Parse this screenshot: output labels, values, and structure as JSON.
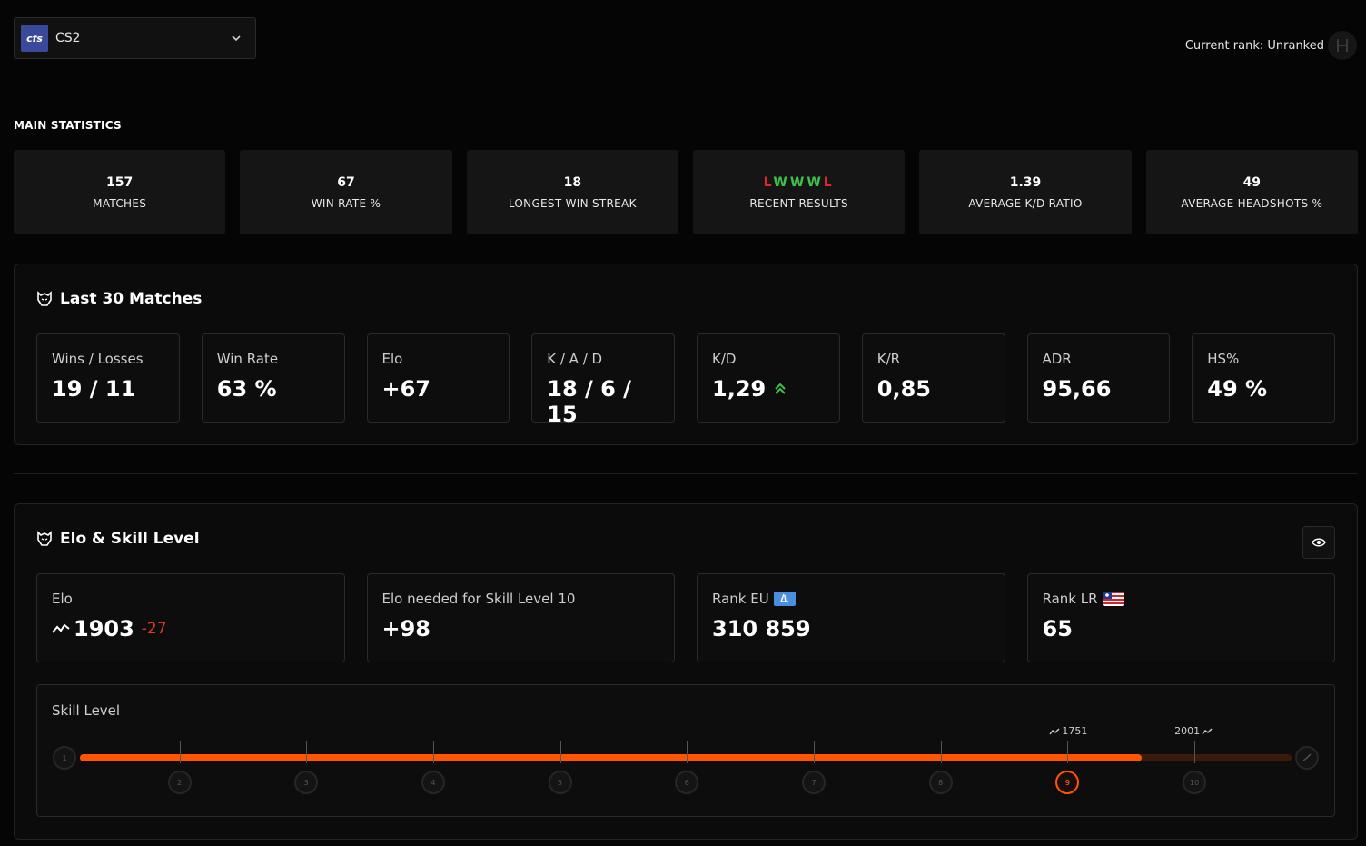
{
  "game_selector": {
    "logo_text": "cfs",
    "value": "CS2"
  },
  "current_rank": {
    "label": "Current rank: Unranked"
  },
  "main_statistics": {
    "title": "MAIN STATISTICS",
    "cards": [
      {
        "value": "157",
        "label": "MATCHES"
      },
      {
        "value": "67",
        "label": "WIN RATE %"
      },
      {
        "value": "18",
        "label": "LONGEST WIN STREAK"
      },
      {
        "value": "LWWWL",
        "label": "RECENT RESULTS"
      },
      {
        "value": "1.39",
        "label": "AVERAGE K/D RATIO"
      },
      {
        "value": "49",
        "label": "AVERAGE HEADSHOTS %"
      }
    ],
    "recent_results": [
      "L",
      "W",
      "W",
      "W",
      "L"
    ]
  },
  "last30": {
    "title": "Last 30 Matches",
    "cards": [
      {
        "label": "Wins / Losses",
        "value": "19 / 11"
      },
      {
        "label": "Win Rate",
        "value": "63 %"
      },
      {
        "label": "Elo",
        "value": "+67"
      },
      {
        "label": "K / A / D",
        "value": "18 / 6 / 15"
      },
      {
        "label": "K/D",
        "value": "1,29"
      },
      {
        "label": "K/R",
        "value": "0,85"
      },
      {
        "label": "ADR",
        "value": "95,66"
      },
      {
        "label": "HS%",
        "value": "49 %"
      }
    ]
  },
  "elo_section": {
    "title": "Elo & Skill Level",
    "cards": [
      {
        "label": "Elo",
        "value": "1903",
        "delta": "-27"
      },
      {
        "label": "Elo needed for Skill Level 10",
        "value": "+98"
      },
      {
        "label": "Rank EU",
        "value": "310 859"
      },
      {
        "label": "Rank LR",
        "value": "65"
      }
    ],
    "skill_level": {
      "label": "Skill Level",
      "levels": [
        "1",
        "2",
        "3",
        "4",
        "5",
        "6",
        "7",
        "8",
        "9",
        "10"
      ],
      "current_level": 9,
      "progress_fraction": 0.876,
      "marker_current": "1751",
      "marker_next": "2001"
    }
  },
  "colors": {
    "accent": "#ff5500",
    "win": "#3cc24a",
    "loss": "#e3242b",
    "delta_negative": "#e3342b",
    "trend_up": "#3cc24a"
  },
  "icons": {
    "game_dropdown": "chevron-down-icon",
    "rank": "rank-badge-icon",
    "section": "wolf-logo-icon",
    "trend": "trend-line-icon",
    "kd_up": "double-chevron-up-icon",
    "visibility": "eye-icon",
    "region_eu": "eu-flag-icon",
    "region_lr": "liberia-flag-icon"
  }
}
